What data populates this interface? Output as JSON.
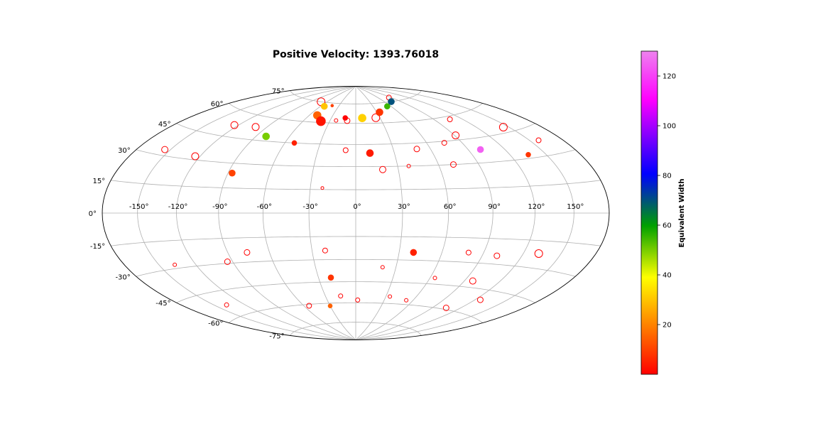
{
  "chart_data": {
    "type": "scatter",
    "projection": "hammer",
    "title": "Positive Velocity: 1393.76018",
    "xlabel": "",
    "ylabel": "",
    "grid": true,
    "longitude_ticks": [
      -150,
      -120,
      -90,
      -60,
      -30,
      0,
      30,
      60,
      90,
      120,
      150
    ],
    "longitude_tick_labels": [
      "-150°",
      "-120°",
      "-90°",
      "-60°",
      "-30°",
      "0°",
      "30°",
      "60°",
      "90°",
      "120°",
      "150°"
    ],
    "latitude_ticks": [
      -75,
      -60,
      -45,
      -30,
      -15,
      0,
      15,
      30,
      45,
      60,
      75
    ],
    "latitude_tick_labels": [
      "-75°",
      "-60°",
      "-45°",
      "-30°",
      "-15°",
      "0°",
      "15°",
      "30°",
      "45°",
      "60°",
      "75°"
    ],
    "colorbar": {
      "label": "Equivalent Width",
      "range": [
        0,
        130
      ],
      "ticks": [
        20,
        40,
        60,
        80,
        100,
        120
      ],
      "tick_labels": [
        "20",
        "40",
        "60",
        "80",
        "100",
        "120"
      ],
      "colors": [
        "#ff0000",
        "#ff8000",
        "#ffff00",
        "#00a000",
        "#0000ff",
        "#ff00ff",
        "#ee82ee"
      ]
    },
    "filled_points": [
      {
        "lon": -54,
        "lat": 72,
        "value": 30,
        "size": 4.5
      },
      {
        "lon": -50,
        "lat": 65,
        "value": 15,
        "size": 5.5
      },
      {
        "lon": -40,
        "lat": 61,
        "value": 3,
        "size": 6.5
      },
      {
        "lon": 8,
        "lat": 64,
        "value": 32,
        "size": 5.5
      },
      {
        "lon": 34,
        "lat": 68,
        "value": 8,
        "size": 5
      },
      {
        "lon": 54,
        "lat": 72,
        "value": 55,
        "size": 4
      },
      {
        "lon": 73,
        "lat": 75,
        "value": 70,
        "size": 4.5
      },
      {
        "lon": -81,
        "lat": 48,
        "value": 50,
        "size": 5
      },
      {
        "lon": -52,
        "lat": 45,
        "value": 5,
        "size": 3.5
      },
      {
        "lon": 11,
        "lat": 39,
        "value": 4,
        "size": 5
      },
      {
        "lon": 100,
        "lat": 38,
        "value": 125,
        "size": 4.5
      },
      {
        "lon": 135,
        "lat": 32,
        "value": 8,
        "size": 3.5
      },
      {
        "lon": -87,
        "lat": 24,
        "value": 10,
        "size": 4.5
      },
      {
        "lon": 40,
        "lat": -25,
        "value": 5,
        "size": 4.5
      },
      {
        "lon": -20,
        "lat": -42,
        "value": 8,
        "size": 4
      },
      {
        "lon": -30,
        "lat": -62,
        "value": 15,
        "size": 3
      },
      {
        "lon": -42,
        "lat": 73,
        "value": 10,
        "size": 2
      },
      {
        "lon": -13,
        "lat": 64,
        "value": 0,
        "size": 3.5
      }
    ],
    "open_points": [
      {
        "lon": -71,
        "lat": 75,
        "value": 0,
        "size": 5.5
      },
      {
        "lon": -23,
        "lat": 62,
        "value": 0,
        "size": 2.5
      },
      {
        "lon": -10,
        "lat": 62,
        "value": 0,
        "size": 4
      },
      {
        "lon": 25,
        "lat": 64,
        "value": 0,
        "size": 5.5
      },
      {
        "lon": 85,
        "lat": 78,
        "value": 0,
        "size": 3.5
      },
      {
        "lon": -124,
        "lat": 52,
        "value": 0,
        "size": 5
      },
      {
        "lon": -101,
        "lat": 53,
        "value": 0,
        "size": 5
      },
      {
        "lon": -8,
        "lat": 41,
        "value": 0,
        "size": 3.5
      },
      {
        "lon": 49,
        "lat": 41,
        "value": 0,
        "size": 4
      },
      {
        "lon": 75,
        "lat": 44,
        "value": 0,
        "size": 3.5
      },
      {
        "lon": 91,
        "lat": 48,
        "value": 0,
        "size": 5
      },
      {
        "lon": 107,
        "lat": 58,
        "value": 0,
        "size": 3.5
      },
      {
        "lon": 145,
        "lat": 48,
        "value": 0,
        "size": 5.5
      },
      {
        "lon": -155,
        "lat": 33,
        "value": 0,
        "size": 4.5
      },
      {
        "lon": -124,
        "lat": 32,
        "value": 0,
        "size": 5
      },
      {
        "lon": 19,
        "lat": 28,
        "value": 0,
        "size": 4.5
      },
      {
        "lon": 38,
        "lat": 30,
        "value": 0,
        "size": 2.5
      },
      {
        "lon": 71,
        "lat": 30,
        "value": 0,
        "size": 4
      },
      {
        "lon": 158,
        "lat": 38,
        "value": 0,
        "size": 3.5
      },
      {
        "lon": -22,
        "lat": 16,
        "value": 0,
        "size": 2
      },
      {
        "lon": -137,
        "lat": -28,
        "value": 0,
        "size": 2.5
      },
      {
        "lon": -94,
        "lat": -29,
        "value": 0,
        "size": 4
      },
      {
        "lon": -76,
        "lat": -24,
        "value": 0,
        "size": 4
      },
      {
        "lon": -21,
        "lat": -24,
        "value": 0,
        "size": 3.5
      },
      {
        "lon": 79,
        "lat": -24,
        "value": 0,
        "size": 3.5
      },
      {
        "lon": 101,
        "lat": -25,
        "value": 0,
        "size": 4
      },
      {
        "lon": 132,
        "lat": -22,
        "value": 0,
        "size": 5.5
      },
      {
        "lon": 20,
        "lat": -35,
        "value": 0,
        "size": 2.5
      },
      {
        "lon": 64,
        "lat": -41,
        "value": 0,
        "size": 2.5
      },
      {
        "lon": 97,
        "lat": -41,
        "value": 0,
        "size": 4.5
      },
      {
        "lon": -138,
        "lat": -53,
        "value": 0,
        "size": 3
      },
      {
        "lon": -54,
        "lat": -61,
        "value": 0,
        "size": 3.5
      },
      {
        "lon": -15,
        "lat": -55,
        "value": 0,
        "size": 3
      },
      {
        "lon": 2,
        "lat": -58,
        "value": 0,
        "size": 3
      },
      {
        "lon": 34,
        "lat": -55,
        "value": 0,
        "size": 2.5
      },
      {
        "lon": 53,
        "lat": -57,
        "value": 0,
        "size": 2.5
      },
      {
        "lon": 105,
        "lat": -59,
        "value": 0,
        "size": 4
      },
      {
        "lon": 125,
        "lat": -51,
        "value": 0,
        "size": 4
      }
    ]
  }
}
